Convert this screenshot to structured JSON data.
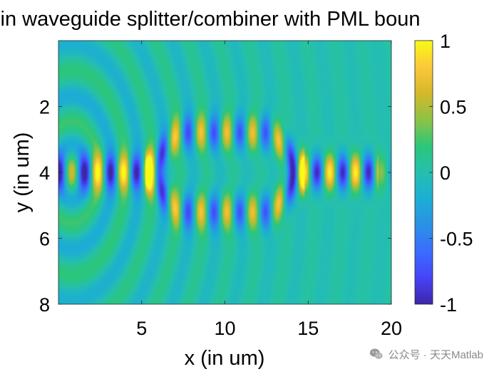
{
  "chart_data": {
    "type": "heatmap",
    "title": "z in waveguide splitter/combiner with PML boun",
    "xlabel": "x (in um)",
    "ylabel": "y (in um)",
    "xlim": [
      0,
      20
    ],
    "ylim": [
      0,
      8
    ],
    "y_reversed": true,
    "xticks": [
      5,
      10,
      15,
      20
    ],
    "yticks": [
      2,
      4,
      6,
      8
    ],
    "colorbar": {
      "range": [
        -1,
        1
      ],
      "ticks": [
        1,
        0.5,
        0,
        -0.5,
        -1
      ],
      "tick_labels": [
        "1",
        "0.5",
        "0",
        "-0.5",
        "-1"
      ],
      "colormap": "parula",
      "colormap_stops": [
        "#3e26a8",
        "#4743f8",
        "#3a6dfd",
        "#2a91e6",
        "#1caed4",
        "#25c0ad",
        "#2cc67a",
        "#8ec246",
        "#d6b82b",
        "#fbc83a",
        "#f9fb15"
      ]
    },
    "field": {
      "description": "Ez field of a waveguide that splits into two arms around y=2.8 and y=5.2 then recombines at y=4",
      "center_y": 4,
      "source_x": 0.8,
      "split_start_x": 5,
      "rejoin_end_x": 15,
      "arm_offset_y": 1.2,
      "wavelength_x": 1.55
    }
  },
  "watermark": {
    "text": "公众号 · 天天Matlab",
    "icon": "wechat-icon"
  }
}
